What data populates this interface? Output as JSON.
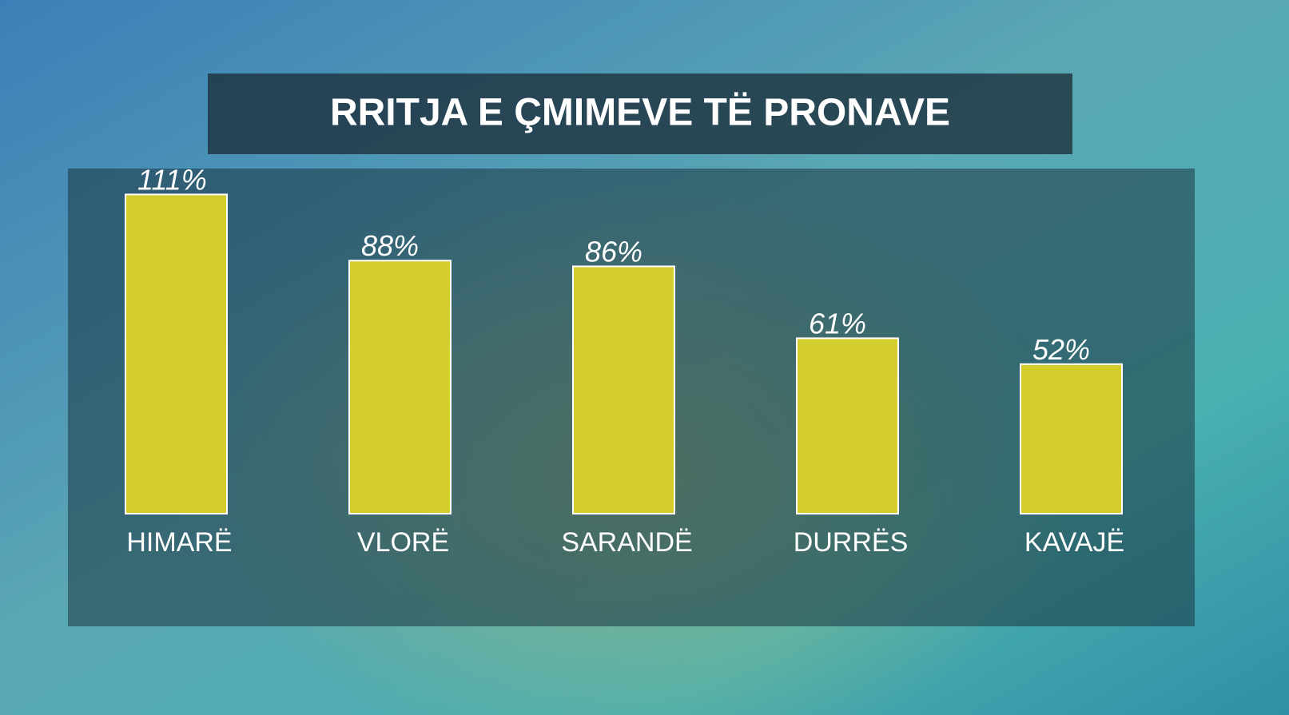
{
  "chart_data": {
    "type": "bar",
    "title": "RRITJA E ÇMIMEVE TË PRONAVE",
    "categories": [
      "HIMARË",
      "VLORË",
      "SARANDË",
      "DURRËS",
      "KAVAJË"
    ],
    "values": [
      111,
      88,
      86,
      61,
      52
    ],
    "value_labels": [
      "111%",
      "88%",
      "86%",
      "61%",
      "52%"
    ],
    "color": "#d4cd2e"
  }
}
